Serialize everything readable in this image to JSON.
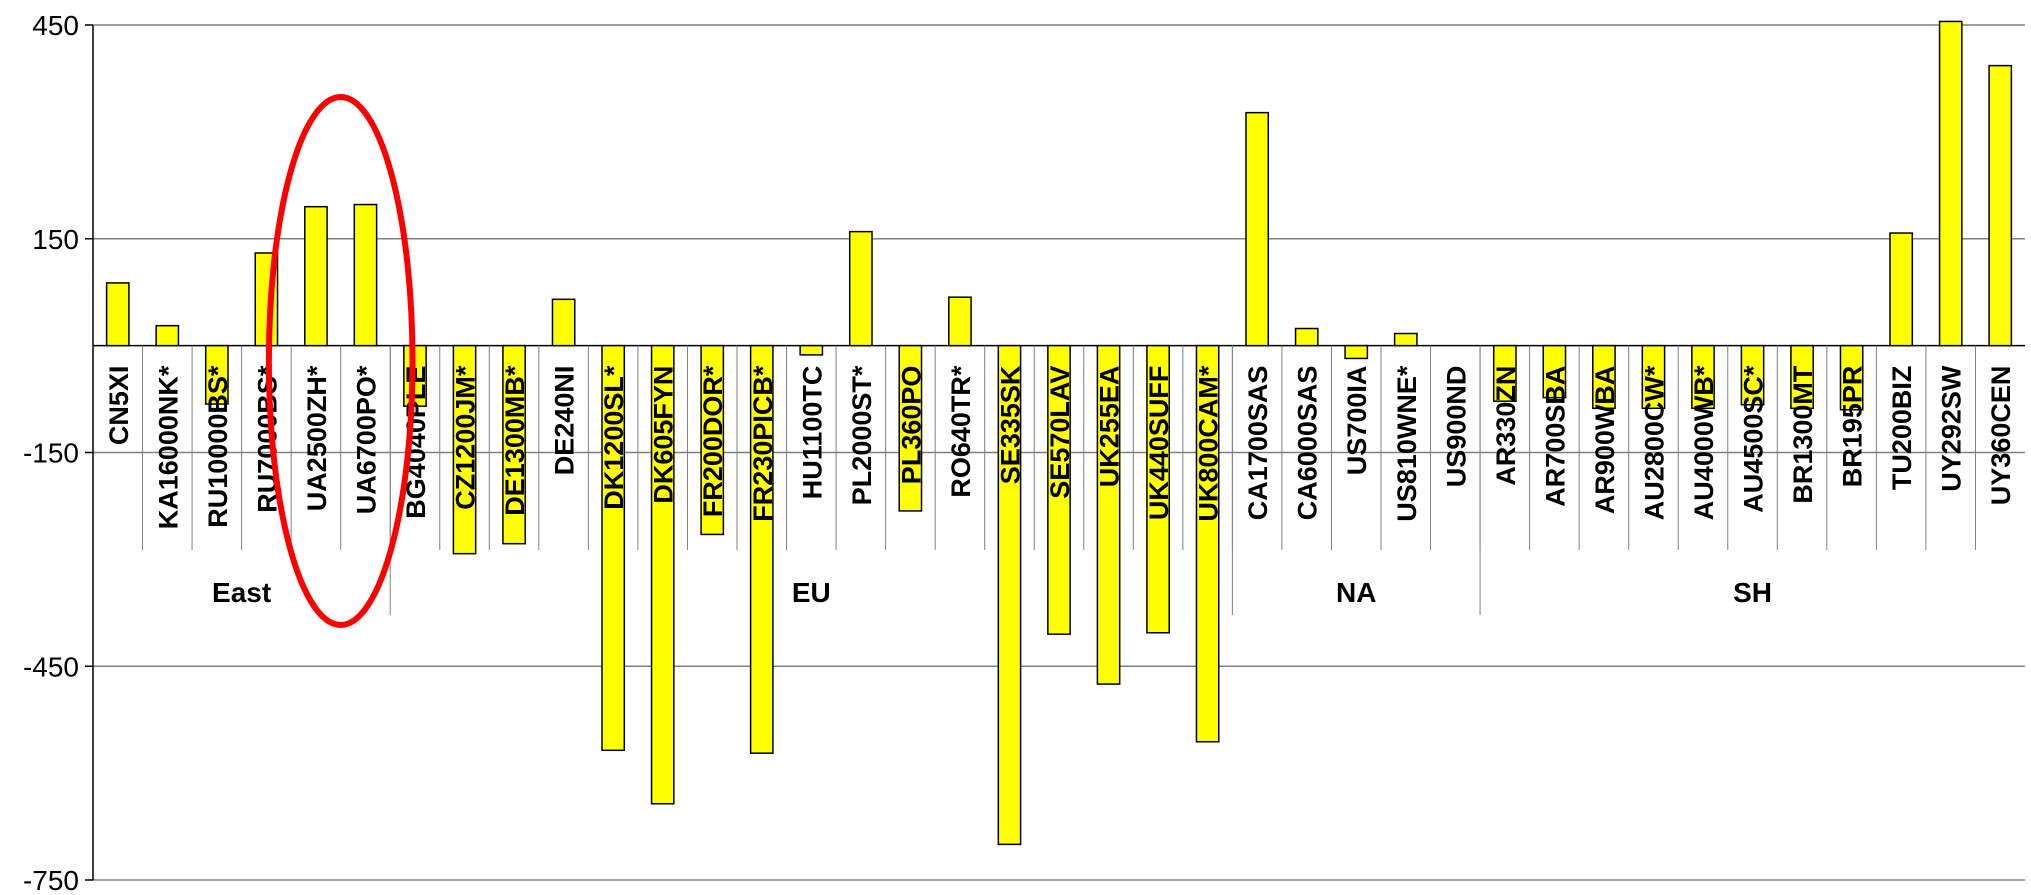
{
  "chart_data": {
    "type": "bar",
    "title": "",
    "xlabel": "",
    "ylabel": "",
    "ylim": [
      -750,
      450
    ],
    "yticks": [
      450,
      150,
      -150,
      -450,
      -750
    ],
    "ytick_labels": [
      "450",
      "150",
      "-150",
      "-450",
      "-750"
    ],
    "grid": true,
    "bar_color": "#ffff00",
    "bar_edge_color": "#000000",
    "highlight_color": "#ff0000",
    "categories": [
      "CN5XI",
      "KA16000NK*",
      "RU10000BS*",
      "RU7000BS*",
      "UA2500ZH*",
      "UA6700PO*",
      "BG4040PLE",
      "CZ1200JM*",
      "DE1300MB*",
      "DE240NI",
      "DK1200SL*",
      "DK605FYN",
      "FR200DOR*",
      "FR230PICB*",
      "HU1100TC",
      "PL2000ST*",
      "PL360PO",
      "RO640TR*",
      "SE335SK",
      "SE570LAV",
      "UK255EA",
      "UK440SUFF",
      "UK800CAM*",
      "CA1700SAS",
      "CA6000SAS",
      "US700IA",
      "US810WNE*",
      "US900ND",
      "AR330ZN",
      "AR700SBA",
      "AR900WBA",
      "AU2800CW*",
      "AU4000WB*",
      "AU4500SC*",
      "BR1300MT",
      "BR195PR",
      "TU200BIZ",
      "UY292SW",
      "UY360CEN"
    ],
    "values": [
      88,
      28,
      -82,
      130,
      195,
      198,
      -85,
      -292,
      -278,
      65,
      -568,
      -643,
      -265,
      -572,
      -13,
      160,
      -232,
      68,
      -700,
      -405,
      -475,
      -403,
      -556,
      327,
      24,
      -18,
      17,
      0,
      -78,
      -73,
      -88,
      -88,
      -88,
      -83,
      -88,
      -90,
      158,
      455,
      393
    ],
    "groups": [
      {
        "name": "East",
        "start": 0,
        "end": 5
      },
      {
        "name": "EU",
        "start": 6,
        "end": 22
      },
      {
        "name": "NA",
        "start": 23,
        "end": 27
      },
      {
        "name": "SH",
        "start": 28,
        "end": 38
      }
    ],
    "highlight": {
      "shape": "ellipse",
      "covers": [
        "UA2500ZH*",
        "UA6700PO*"
      ]
    }
  }
}
